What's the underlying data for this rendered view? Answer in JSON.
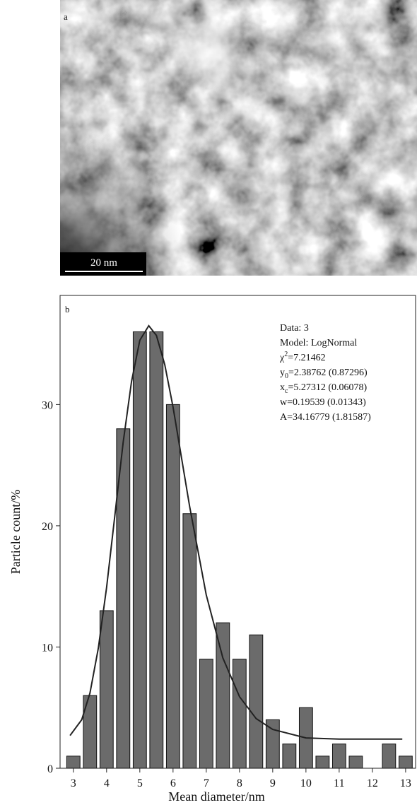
{
  "panel_a": {
    "label": "a",
    "scale_bar": "20 nm"
  },
  "chart_data": {
    "type": "bar",
    "label": "b",
    "x_label": "Mean diameter/nm",
    "y_label": "Particle count/%",
    "x": [
      3,
      3.5,
      4,
      4.5,
      5,
      5.5,
      6,
      6.5,
      7,
      7.5,
      8,
      8.5,
      9,
      9.5,
      10,
      10.5,
      11,
      11.5,
      12,
      12.5,
      13
    ],
    "values": [
      1,
      6,
      13,
      28,
      36,
      36,
      30,
      21,
      9,
      12,
      9,
      11,
      4,
      2,
      5,
      1,
      2,
      1,
      0,
      2,
      1
    ],
    "color": "#6b6b6b",
    "xlim": [
      2.6,
      13.3
    ],
    "ylim": [
      0,
      39
    ],
    "xticks": [
      3,
      4,
      5,
      6,
      7,
      8,
      9,
      10,
      11,
      12,
      13
    ],
    "yticks": [
      0,
      10,
      20,
      30
    ],
    "fit": {
      "color": "#222222",
      "x": [
        2.9,
        3.25,
        3.5,
        3.75,
        4,
        4.25,
        4.5,
        4.75,
        5,
        5.27,
        5.5,
        5.75,
        6,
        6.5,
        7,
        7.5,
        8,
        8.5,
        9,
        10,
        11,
        12,
        12.9
      ],
      "values": [
        2.7,
        4.0,
        6.2,
        9.9,
        14.9,
        20.9,
        26.9,
        31.9,
        35.3,
        36.5,
        35.7,
        33.3,
        29.8,
        21.6,
        14.3,
        9.1,
        5.9,
        4.1,
        3.2,
        2.5,
        2.4,
        2.4,
        2.4
      ]
    },
    "fit_info": [
      {
        "text": "Data: 3"
      },
      {
        "text": "Model: LogNormal"
      },
      {
        "base": "χ",
        "sup": "2",
        "rest": "=7.21462"
      },
      {
        "base": "y",
        "sub": "0",
        "rest": "=2.38762 (0.87296)"
      },
      {
        "base": "x",
        "sub": "c",
        "rest": "=5.27312 (0.06078)"
      },
      {
        "text": "w=0.19539 (0.01343)"
      },
      {
        "text": "A=34.16779 (1.81587)"
      }
    ]
  }
}
